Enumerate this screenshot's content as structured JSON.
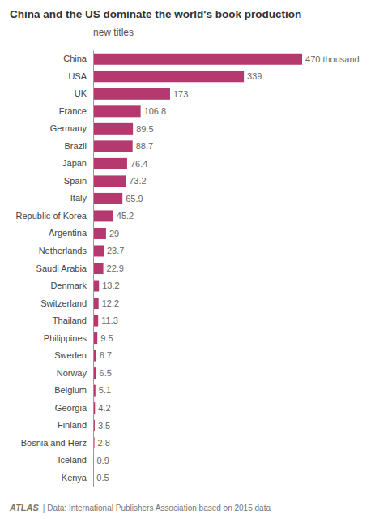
{
  "chart_data": {
    "type": "bar",
    "orientation": "horizontal",
    "title": "China and the US dominate the world's book production",
    "subtitle": "new titles",
    "annotations": [
      "ATLAS",
      "| Data: International Publishers Association based on 2015 data"
    ],
    "categories": [
      "China",
      "USA",
      "UK",
      "France",
      "Germany",
      "Brazil",
      "Japan",
      "Spain",
      "Italy",
      "Republic of Korea",
      "Argentina",
      "Netherlands",
      "Saudi Arabia",
      "Denmark",
      "Switzerland",
      "Thailand",
      "Philippines",
      "Sweden",
      "Norway",
      "Belgium",
      "Georgia",
      "Finland",
      "Bosnia and Herz",
      "Iceland",
      "Kenya"
    ],
    "values": [
      470,
      339,
      173,
      106.8,
      89.5,
      88.7,
      76.4,
      73.2,
      65.9,
      45.2,
      29,
      23.7,
      22.9,
      13.2,
      12.2,
      11.3,
      9.5,
      6.7,
      6.5,
      5.1,
      4.2,
      3.5,
      2.8,
      0.9,
      0.5
    ],
    "value_labels": [
      "470 thousand",
      "339",
      "173",
      "106.8",
      "89.5",
      "88.7",
      "76.4",
      "73.2",
      "65.9",
      "45.2",
      "29",
      "23.7",
      "22.9",
      "13.2",
      "12.2",
      "11.3",
      "9.5",
      "6.7",
      "6.5",
      "5.1",
      "4.2",
      "3.5",
      "2.8",
      "0.9",
      "0.5"
    ],
    "data_labels": true,
    "color": "#b5396e",
    "xlim": [
      0,
      510
    ],
    "tick_labels": "y"
  }
}
